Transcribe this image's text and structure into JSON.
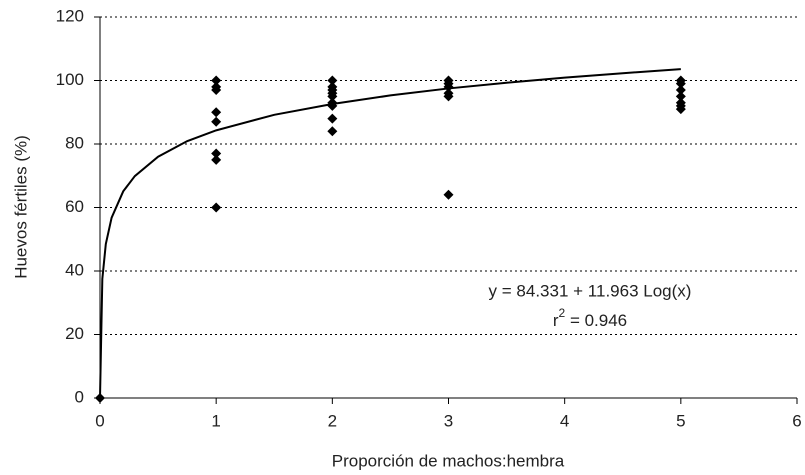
{
  "chart_data": {
    "type": "scatter",
    "xlabel": "Proporción de machos:hembra",
    "ylabel": "Huevos fértiles (%)",
    "xlim": [
      0,
      6
    ],
    "xticks": [
      0,
      1,
      2,
      3,
      4,
      5,
      6
    ],
    "ylim": [
      0,
      120
    ],
    "yticks": [
      0,
      20,
      40,
      60,
      80,
      100,
      120
    ],
    "grid": true,
    "color": "#000000",
    "x": [
      0,
      1,
      1,
      1,
      1,
      1,
      1,
      1,
      1,
      2,
      2,
      2,
      2,
      2,
      2,
      2,
      2,
      2,
      3,
      3,
      3,
      3,
      3,
      3,
      5,
      5,
      5,
      5,
      5,
      5,
      5
    ],
    "values": [
      0,
      100,
      98,
      97,
      90,
      87,
      77,
      75,
      60,
      100,
      98,
      97,
      96,
      95,
      93,
      92,
      88,
      84,
      100,
      99,
      98,
      96,
      95,
      64,
      100,
      99,
      97,
      95,
      93,
      92,
      91
    ],
    "trendline": {
      "x": [
        0,
        0.02,
        0.05,
        0.1,
        0.2,
        0.3,
        0.5,
        0.75,
        1,
        1.5,
        2,
        2.5,
        3,
        3.5,
        4,
        4.5,
        5
      ],
      "values": [
        0,
        37.5,
        48.5,
        56.8,
        65.1,
        69.9,
        76.0,
        80.9,
        84.3,
        89.2,
        92.6,
        95.3,
        97.5,
        99.3,
        100.9,
        102.3,
        103.6
      ]
    },
    "equation": "y = 84.331 + 11.963 Log(x)",
    "r_squared": {
      "base": "r",
      "sup": "2",
      "rest": " = 0.946"
    }
  }
}
